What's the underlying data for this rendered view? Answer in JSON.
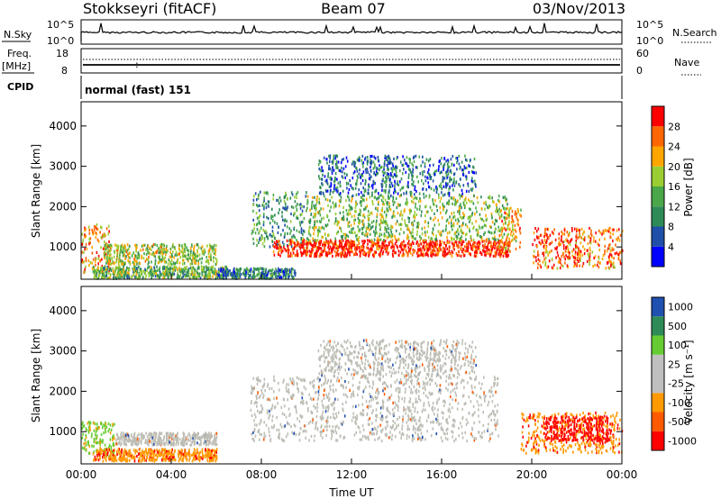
{
  "header": {
    "station": "Stokkseyri (fitACF)",
    "beam": "Beam 07",
    "date": "03/Nov/2013"
  },
  "status_panels": {
    "nsky": {
      "left_label": "N.Sky",
      "right_label": "N.Search",
      "left_ticks": [
        "10^5",
        "10^0"
      ],
      "right_ticks": [
        "10^5",
        "10^0"
      ]
    },
    "freq": {
      "label_top": "Freq.",
      "label_unit": "[MHz]",
      "left_ticks": [
        "18",
        "8"
      ],
      "right_ticks": [
        "60",
        "0"
      ],
      "right_label": "Nave"
    },
    "cpid": {
      "label": "CPID",
      "value": "normal (fast) 151"
    }
  },
  "colors": {
    "power_scale": [
      "#0000ff",
      "#1f4fa8",
      "#2e8b57",
      "#4aa84a",
      "#9acd32",
      "#ffa500",
      "#ff6600",
      "#ff0000"
    ],
    "velocity_scale": [
      "#ff0000",
      "#ff5a00",
      "#ff9900",
      "#bfbfbf",
      "#bfbfbf",
      "#66cc33",
      "#2e8b57",
      "#2050b0"
    ],
    "ground_scatter": "#bdbdb5"
  },
  "chart_data": [
    {
      "type": "heatmap",
      "name": "power",
      "ylabel": "Slant Range [km]",
      "ylim": [
        200,
        4600
      ],
      "y_ticks": [
        "1000",
        "2000",
        "3000",
        "4000"
      ],
      "xlim": [
        0,
        24
      ],
      "colorbar": {
        "label": "Power [dB]",
        "ticks": [
          "4",
          "8",
          "12",
          "16",
          "20",
          "24",
          "28"
        ],
        "range": [
          0,
          32
        ]
      },
      "regions": [
        {
          "t": [
            0.0,
            1.3
          ],
          "r": [
            400,
            1600
          ],
          "level": 0.75
        },
        {
          "t": [
            1.0,
            6.0
          ],
          "r": [
            600,
            1100
          ],
          "level": 0.55
        },
        {
          "t": [
            0.5,
            6.5
          ],
          "r": [
            250,
            550
          ],
          "level": 0.45
        },
        {
          "t": [
            6.0,
            9.5
          ],
          "r": [
            250,
            500
          ],
          "level": 0.3
        },
        {
          "t": [
            7.5,
            10.0
          ],
          "r": [
            1000,
            2400
          ],
          "level": 0.35
        },
        {
          "t": [
            8.5,
            19.0
          ],
          "r": [
            800,
            1200
          ],
          "level": 0.92
        },
        {
          "t": [
            10.0,
            19.0
          ],
          "r": [
            1200,
            2300
          ],
          "level": 0.5
        },
        {
          "t": [
            10.5,
            17.5
          ],
          "r": [
            2300,
            3300
          ],
          "level": 0.25
        },
        {
          "t": [
            18.5,
            19.5
          ],
          "r": [
            900,
            2000
          ],
          "level": 0.7
        },
        {
          "t": [
            20.0,
            24.0
          ],
          "r": [
            500,
            1500
          ],
          "level": 0.8
        }
      ]
    },
    {
      "type": "heatmap",
      "name": "velocity",
      "xlabel": "Time UT",
      "ylabel": "Slant Range [km]",
      "ylim": [
        200,
        4600
      ],
      "y_ticks": [
        "1000",
        "2000",
        "3000",
        "4000"
      ],
      "xlim": [
        0,
        24
      ],
      "x_ticks": [
        "00:00",
        "04:00",
        "08:00",
        "12:00",
        "16:00",
        "20:00",
        "00:00"
      ],
      "colorbar": {
        "label": "Velocity [m s⁻¹]",
        "ticks": [
          "-1000",
          "-500",
          "-100",
          "-25",
          "25",
          "100",
          "500",
          "1000"
        ]
      },
      "regions": [
        {
          "t": [
            1.5,
            6.0
          ],
          "r": [
            700,
            1000
          ],
          "kind": "ground"
        },
        {
          "t": [
            0.0,
            1.5
          ],
          "r": [
            400,
            1300
          ],
          "kind": "green"
        },
        {
          "t": [
            0.5,
            6.0
          ],
          "r": [
            300,
            600
          ],
          "kind": "orange"
        },
        {
          "t": [
            7.5,
            18.5
          ],
          "r": [
            800,
            2400
          ],
          "kind": "ground"
        },
        {
          "t": [
            10.5,
            17.5
          ],
          "r": [
            2400,
            3300
          ],
          "kind": "ground"
        },
        {
          "t": [
            19.5,
            24.0
          ],
          "r": [
            500,
            1500
          ],
          "kind": "orange"
        },
        {
          "t": [
            20.5,
            23.5
          ],
          "r": [
            800,
            1400
          ],
          "kind": "red"
        }
      ]
    }
  ]
}
